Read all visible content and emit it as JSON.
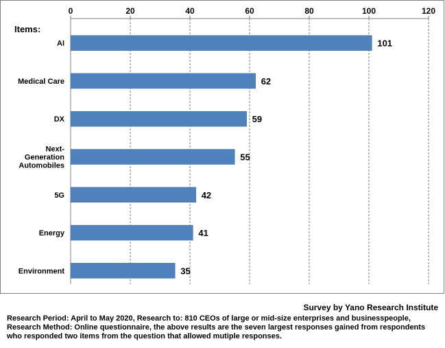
{
  "chart_data": {
    "type": "bar",
    "orientation": "horizontal",
    "categories_title": "Items:",
    "categories": [
      [
        "AI"
      ],
      [
        "Medical Care"
      ],
      [
        "DX"
      ],
      [
        "Next-",
        "Generation",
        "Automobiles"
      ],
      [
        "5G"
      ],
      [
        "Energy"
      ],
      [
        "Environment"
      ]
    ],
    "values": [
      101,
      62,
      59,
      55,
      42,
      41,
      35
    ],
    "xlim": [
      0,
      120
    ],
    "xticks": [
      0,
      20,
      40,
      60,
      80,
      100,
      120
    ],
    "xaxis_position": "top",
    "grid": "vertical dashed",
    "bar_color": "#4f81bd"
  },
  "footer": {
    "source": "Survey by Yano Research Institute",
    "note": "Research Period: April to May 2020, Research to: 810 CEOs  of large or mid-size enterprises and businesspeople, Research Method: Online questionnaire, the above results  are the seven largest responses gained from respondents who responded two items from the question  that allowed mutiple responses."
  }
}
